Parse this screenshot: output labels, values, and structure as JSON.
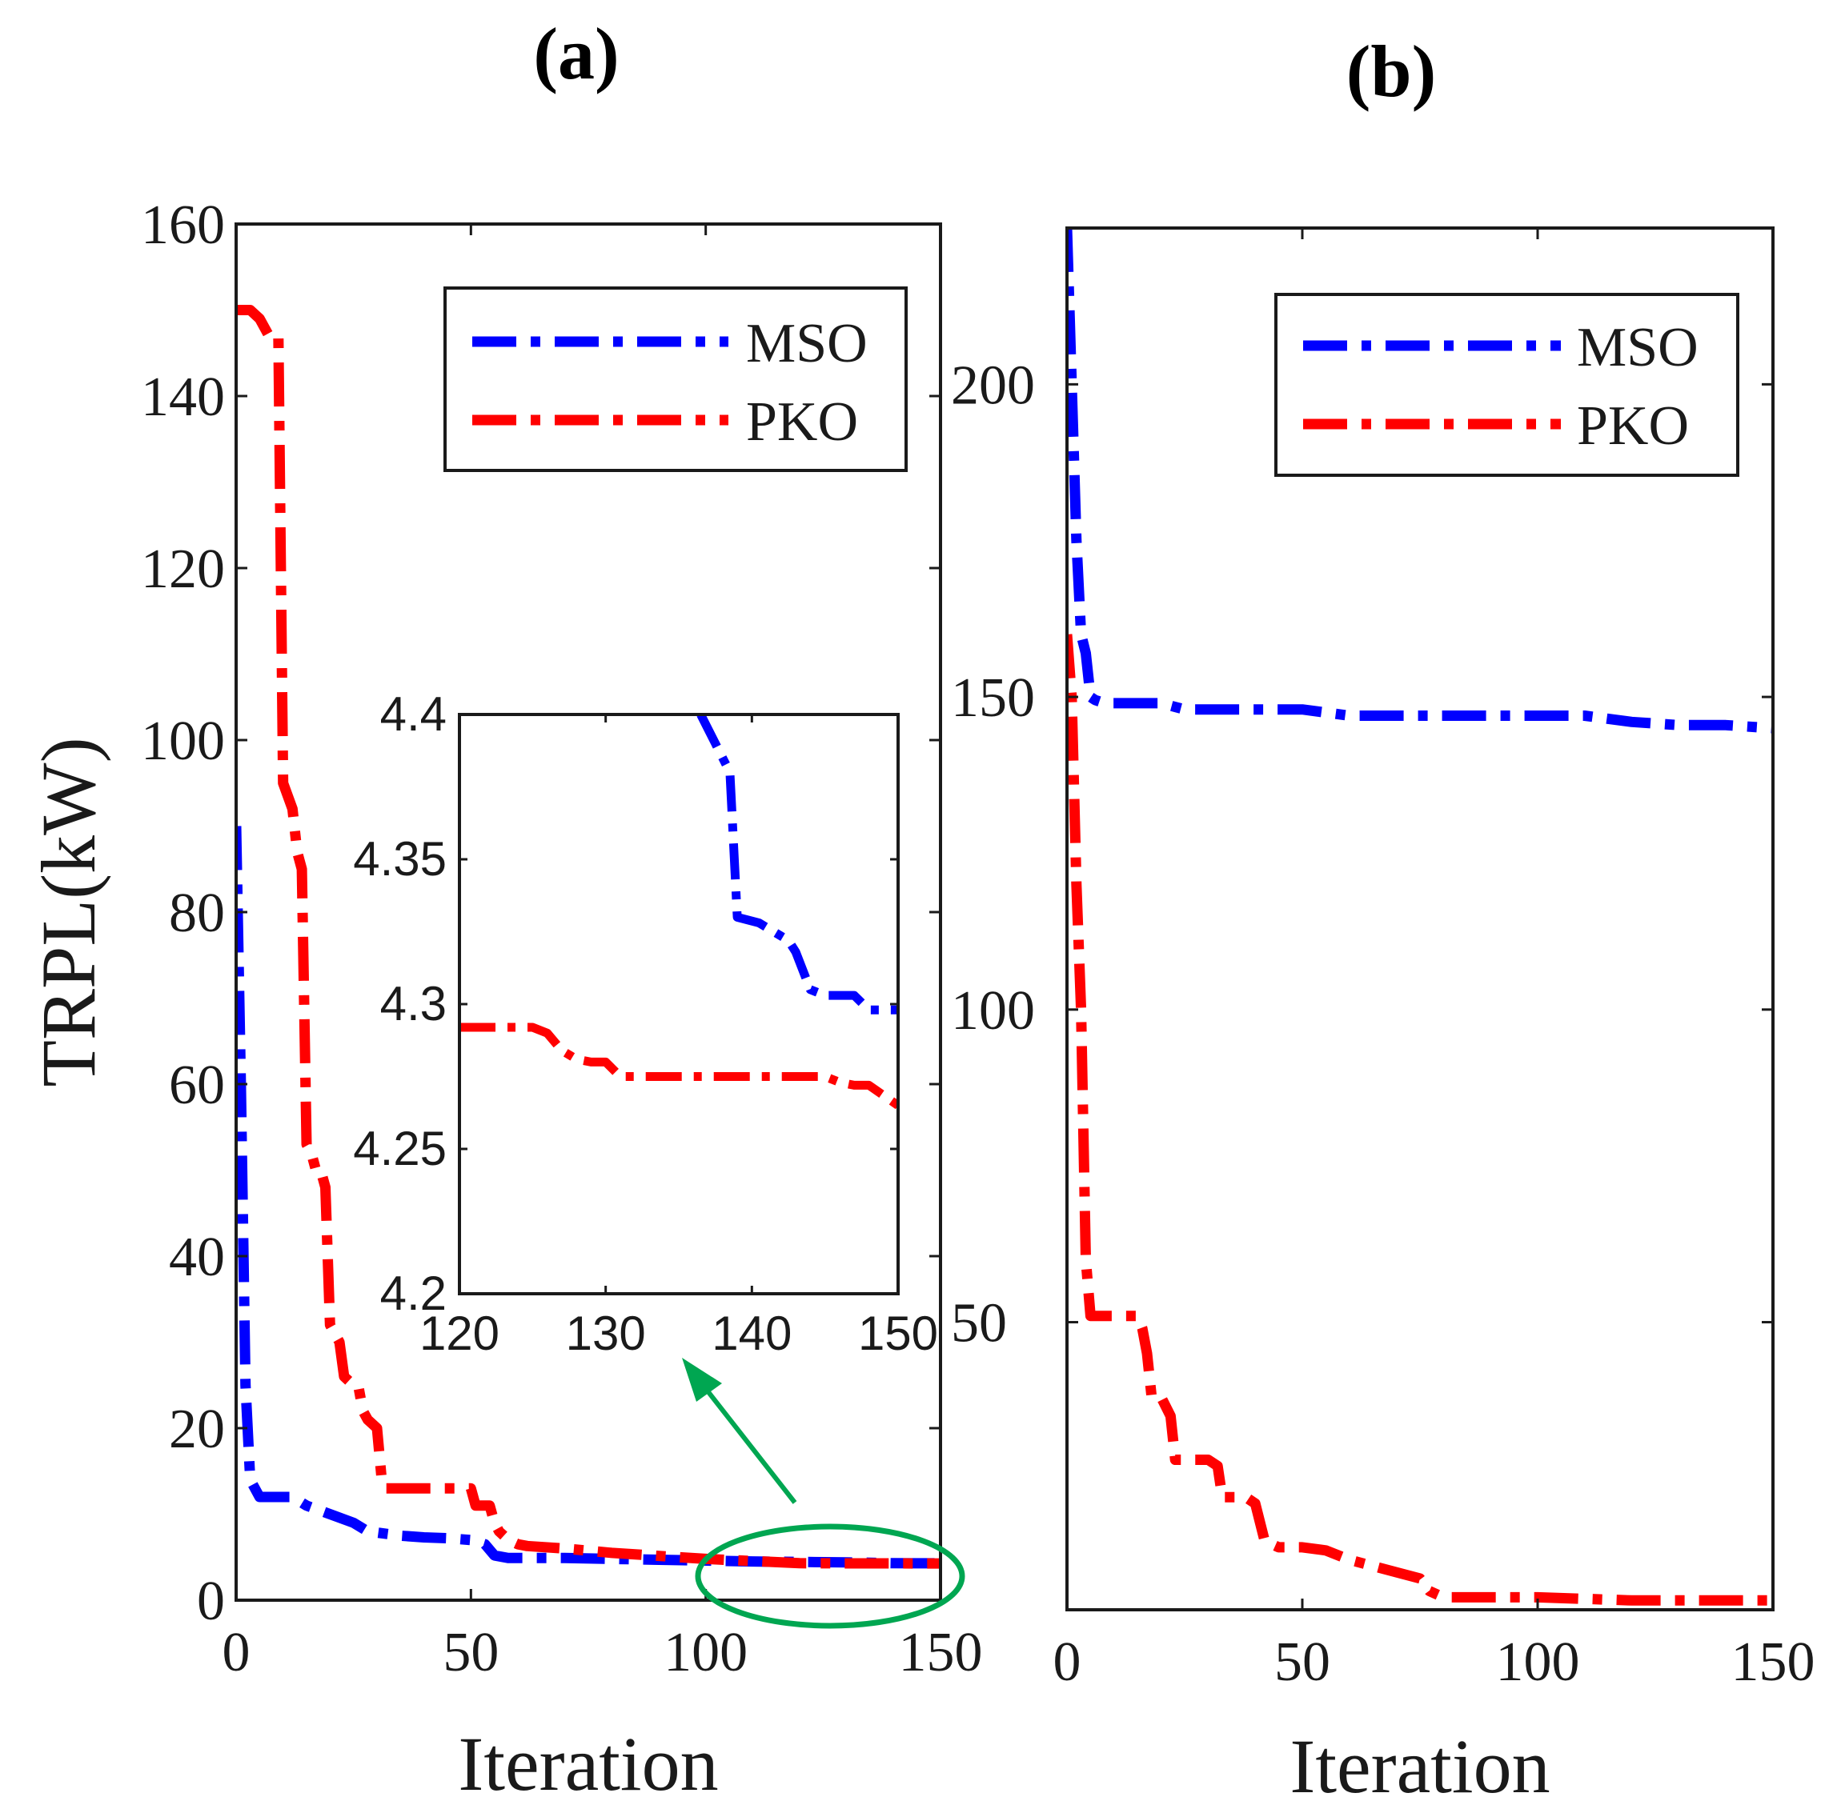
{
  "panels": [
    {
      "title": "(a)",
      "xlabel": "Iteration",
      "ylabel": "TRPL(kW)",
      "legend_position": "top-right"
    },
    {
      "title": "(b)",
      "xlabel": "Iteration",
      "ylabel": "",
      "legend_position": "top-right"
    }
  ],
  "inset": {
    "xticks": [
      "120",
      "130",
      "140",
      "150"
    ],
    "yticks": [
      "4.4",
      "4.35",
      "4.3",
      "4.25",
      "4.2"
    ]
  },
  "colors": {
    "MSO": "#0000ff",
    "PKO": "#ff0000",
    "annotation": "#00a651"
  },
  "chart_data": [
    {
      "type": "line",
      "title": "(a)",
      "xlabel": "Iteration",
      "ylabel": "TRPL(kW)",
      "xlim": [
        0,
        150
      ],
      "ylim": [
        0,
        160
      ],
      "xticks": [
        "0",
        "50",
        "100",
        "150"
      ],
      "yticks": [
        "0",
        "20",
        "40",
        "60",
        "80",
        "100",
        "120",
        "140",
        "160"
      ],
      "grid": false,
      "series": [
        {
          "name": "MSO",
          "x": [
            0,
            1,
            2,
            3,
            5,
            8,
            12,
            15,
            20,
            25,
            28,
            35,
            40,
            45,
            50,
            53,
            55,
            58,
            70,
            80,
            90,
            100,
            110,
            120,
            130,
            140,
            150
          ],
          "y": [
            90,
            60,
            25,
            14,
            12,
            12,
            12,
            11,
            10,
            9,
            8,
            7.5,
            7.3,
            7.2,
            7,
            6.5,
            5.2,
            4.9,
            4.9,
            4.8,
            4.7,
            4.6,
            4.5,
            4.45,
            4.4,
            4.3,
            4.29
          ]
        },
        {
          "name": "PKO",
          "x": [
            0,
            3,
            5,
            7,
            9,
            10,
            12,
            13,
            14,
            15,
            16,
            17,
            18,
            19,
            20,
            21,
            22,
            23,
            24,
            26,
            27,
            28,
            30,
            31,
            32,
            35,
            40,
            45,
            50,
            51,
            54,
            55,
            56,
            58,
            60,
            62,
            70,
            80,
            100,
            120,
            130,
            150
          ],
          "y": [
            150,
            150,
            149,
            147,
            147,
            95,
            92,
            87,
            85,
            53,
            52,
            50,
            50,
            48,
            32,
            31,
            30,
            26,
            25.5,
            25,
            22,
            21,
            20,
            14,
            13,
            13,
            13,
            13,
            13,
            11,
            11,
            9,
            8,
            7,
            6.5,
            6.3,
            6,
            5.5,
            4.8,
            4.3,
            4.28,
            4.27
          ]
        }
      ]
    },
    {
      "type": "line",
      "title": "",
      "xlabel": "",
      "ylabel": "",
      "xlim": [
        120,
        150
      ],
      "ylim": [
        4.2,
        4.4
      ],
      "xticks": [
        "120",
        "130",
        "140",
        "150"
      ],
      "yticks": [
        "4.2",
        "4.25",
        "4.3",
        "4.35",
        "4.4"
      ],
      "grid": false,
      "series": [
        {
          "name": "MSO",
          "x": [
            136.5,
            137.5,
            138.5,
            139,
            140.5,
            141.5,
            142.5,
            143,
            144,
            145,
            147,
            148,
            150
          ],
          "y": [
            4.4,
            4.39,
            4.38,
            4.33,
            4.328,
            4.325,
            4.322,
            4.318,
            4.305,
            4.303,
            4.303,
            4.298,
            4.298
          ]
        },
        {
          "name": "PKO",
          "x": [
            120,
            125,
            126,
            127,
            128,
            129,
            130,
            131,
            135,
            140,
            145,
            146,
            147,
            148,
            150
          ],
          "y": [
            4.292,
            4.292,
            4.29,
            4.284,
            4.281,
            4.28,
            4.28,
            4.275,
            4.275,
            4.275,
            4.275,
            4.273,
            4.272,
            4.272,
            4.265
          ]
        }
      ]
    },
    {
      "type": "line",
      "title": "(b)",
      "xlabel": "Iteration",
      "ylabel": "",
      "xlim": [
        0,
        150
      ],
      "ylim": [
        4,
        225
      ],
      "xticks": [
        "0",
        "50",
        "100",
        "150"
      ],
      "yticks": [
        "50",
        "100",
        "150",
        "200"
      ],
      "grid": false,
      "series": [
        {
          "name": "MSO",
          "x": [
            0,
            1,
            2,
            3,
            4,
            5,
            6,
            8,
            10,
            15,
            20,
            25,
            30,
            40,
            50,
            55,
            60,
            70,
            80,
            90,
            100,
            110,
            115,
            120,
            130,
            140,
            150
          ],
          "y": [
            225,
            200,
            175,
            160,
            157,
            150,
            149.5,
            149,
            149,
            149,
            149,
            148,
            148,
            148,
            148,
            147.5,
            147,
            147,
            147,
            147,
            147,
            147,
            146.5,
            146,
            145.5,
            145.5,
            145
          ]
        },
        {
          "name": "PKO",
          "x": [
            0,
            1,
            2,
            3,
            4,
            5,
            10,
            15,
            16,
            17,
            18,
            20,
            22,
            23,
            25,
            30,
            32,
            33,
            36,
            38,
            40,
            42,
            45,
            50,
            55,
            60,
            65,
            70,
            75,
            77,
            80,
            90,
            100,
            120,
            150
          ],
          "y": [
            160,
            150,
            120,
            100,
            60,
            51,
            51,
            51,
            49,
            45,
            38,
            38,
            35,
            28,
            28,
            28,
            27,
            22,
            22,
            22,
            21,
            15,
            14,
            14,
            13.5,
            12,
            11,
            10,
            9,
            7,
            6,
            6,
            6,
            5.5,
            5.5
          ]
        }
      ]
    }
  ]
}
